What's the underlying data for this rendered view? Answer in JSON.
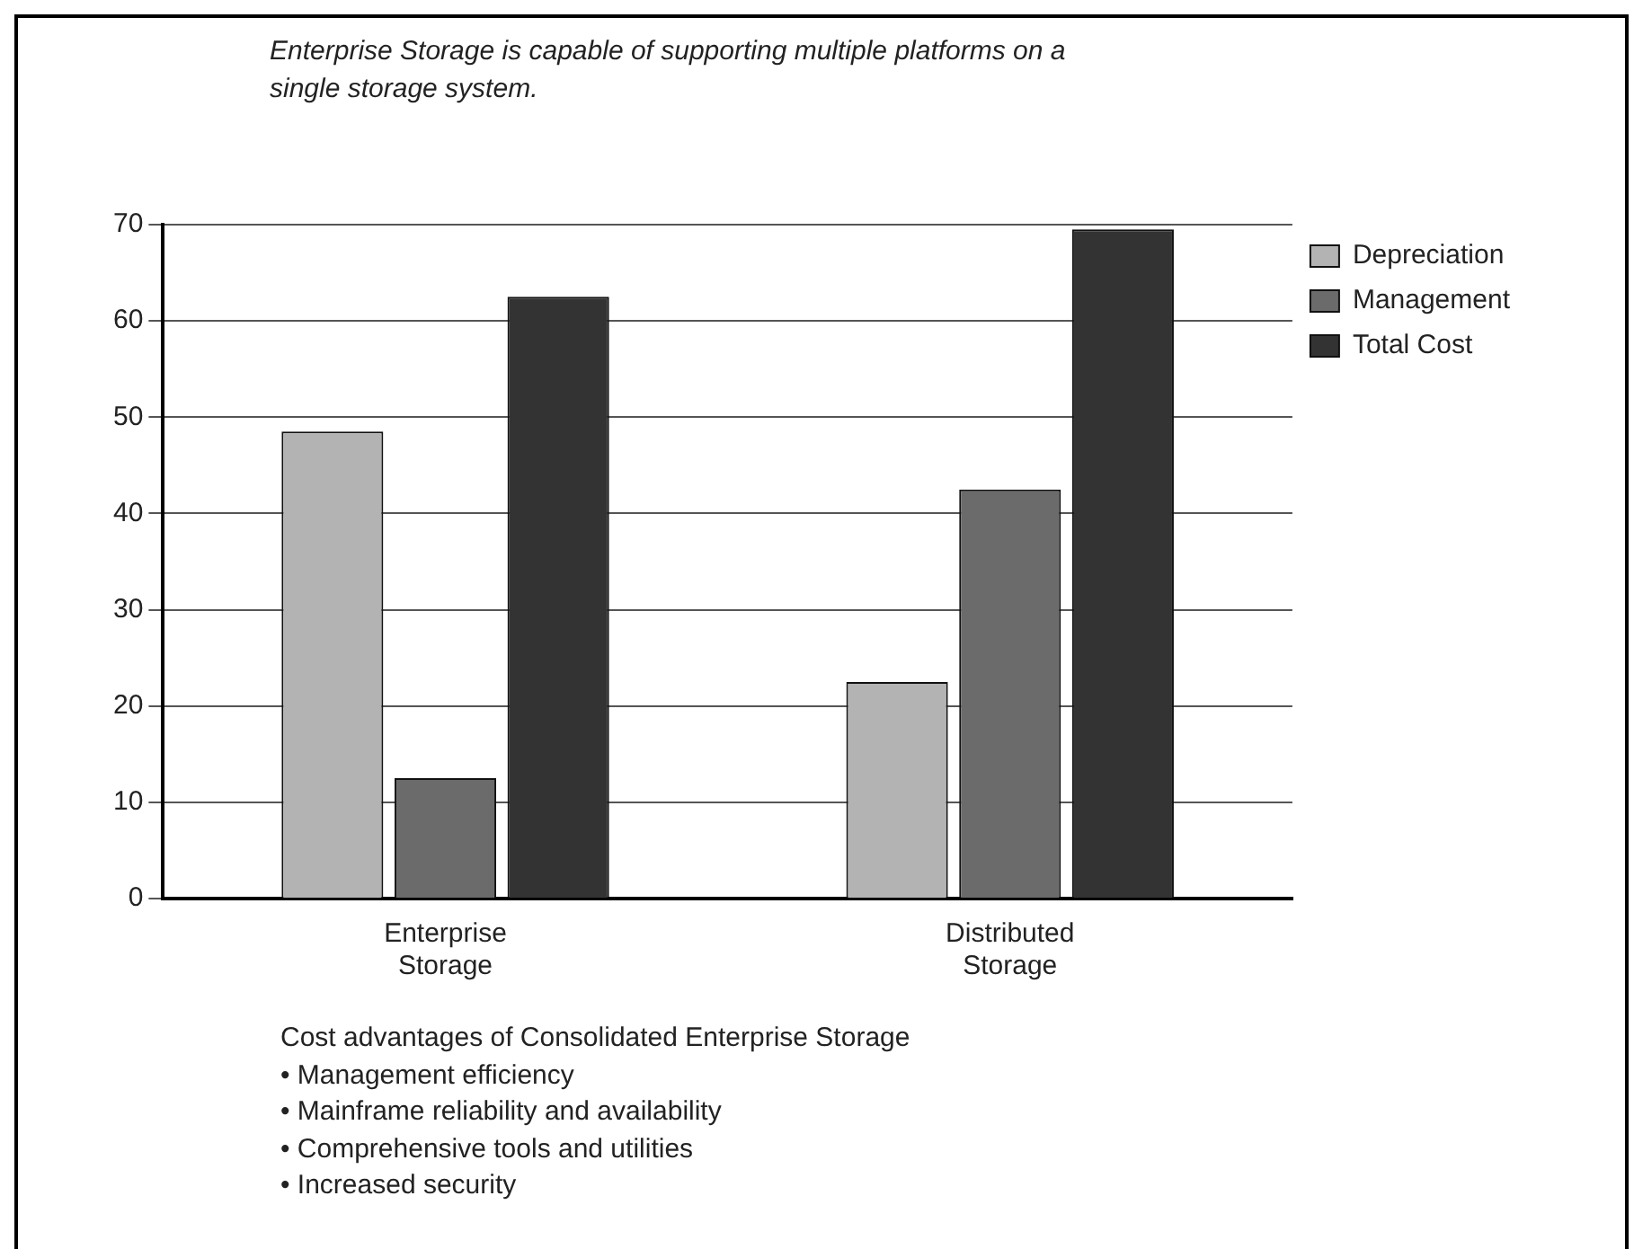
{
  "chart_data": {
    "type": "bar",
    "title": "Enterprise Storage is capable of supporting multiple platforms on a single storage system.",
    "categories": [
      "Enterprise Storage",
      "Distributed Storage"
    ],
    "series": [
      {
        "name": "Depreciation",
        "color": "#b3b3b3",
        "values": [
          48.5,
          22.5
        ]
      },
      {
        "name": "Management",
        "color": "#6b6b6b",
        "values": [
          12.5,
          42.5
        ]
      },
      {
        "name": "Total Cost",
        "color": "#333333",
        "values": [
          62.5,
          69.5
        ]
      }
    ],
    "ylim": [
      0,
      70
    ],
    "yticks": [
      0,
      10,
      20,
      30,
      40,
      50,
      60,
      70
    ],
    "grid": "y",
    "legend": "top right",
    "annotations": [
      "Cost advantages of Consolidated Enterprise Storage",
      "• Management efficiency",
      "• Mainframe reliability and availability",
      "• Comprehensive tools and utilities",
      "• Increased security"
    ]
  }
}
